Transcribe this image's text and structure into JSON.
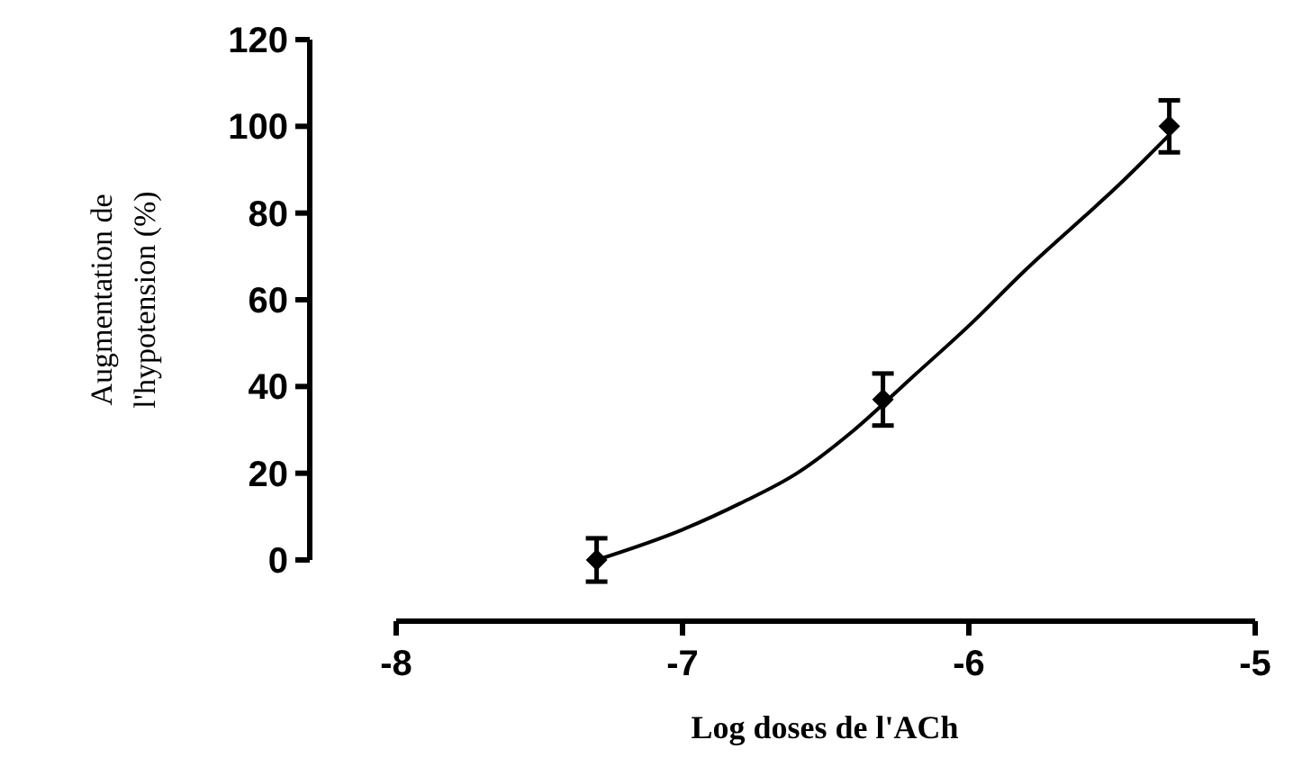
{
  "chart_data": {
    "type": "scatter",
    "xlabel": "Log doses de l'ACh",
    "ylabel": "Augmentation de\nl'hypotension (%)",
    "xlim": [
      -8,
      -5
    ],
    "xticks": [
      -8,
      -7,
      -6,
      -5
    ],
    "ylim": [
      0,
      120
    ],
    "yticks": [
      0,
      20,
      40,
      60,
      80,
      100,
      120
    ],
    "grid": false,
    "series": [
      {
        "color": "#000000",
        "marker": "diamond",
        "x": [
          -7.3,
          -6.3,
          -5.3
        ],
        "values": [
          0,
          37,
          100
        ],
        "errors": [
          5,
          6,
          6
        ]
      },
      {
        "type": "line",
        "color": "#000000",
        "line_style": "solid",
        "x": [
          -7.3,
          -7.0,
          -6.8,
          -6.6,
          -6.4,
          -6.2,
          -6.0,
          -5.8,
          -5.6,
          -5.5,
          -5.3
        ],
        "values": [
          0,
          7,
          13,
          20,
          30,
          42,
          54,
          67,
          79,
          85,
          98
        ]
      }
    ]
  }
}
